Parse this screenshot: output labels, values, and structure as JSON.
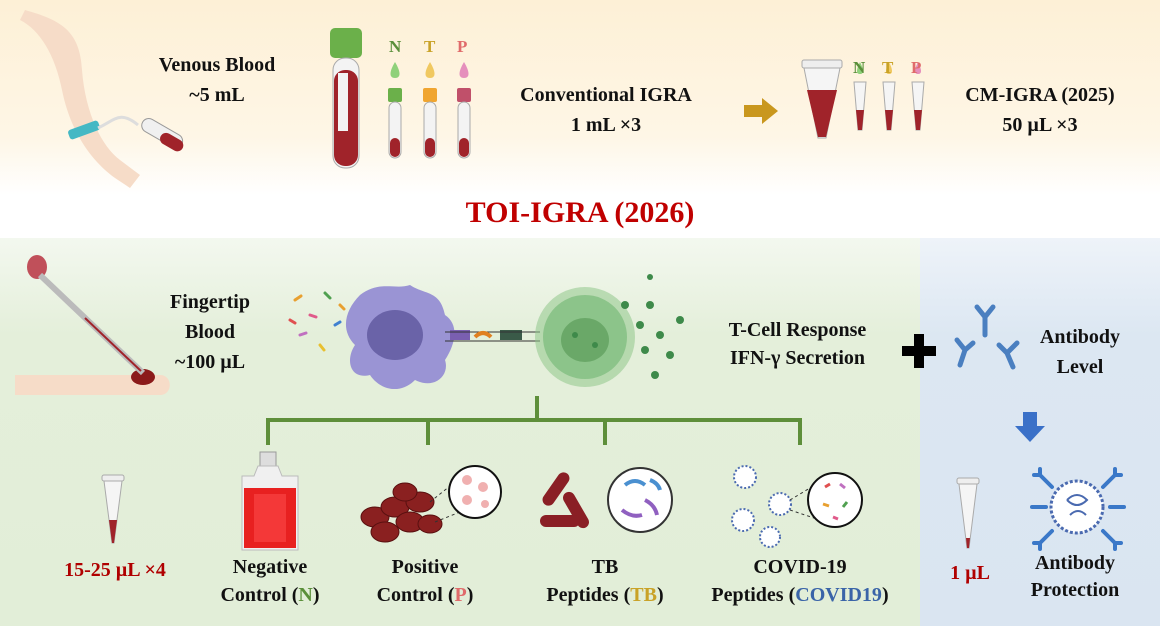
{
  "top": {
    "venous_blood": [
      "Venous Blood",
      "~5 mL"
    ],
    "conventional": [
      "Conventional IGRA",
      "1 mL ×3"
    ],
    "cm_igra": [
      "CM-IGRA (2025)",
      "50 µL ×3"
    ],
    "tube_letters": [
      "N",
      "T",
      "P"
    ]
  },
  "title": "TOI-IGRA (2026)",
  "middle": {
    "fingertip": [
      "Fingertip",
      "Blood",
      "~100 µL"
    ],
    "tcell": [
      "T-Cell Response",
      "IFN-γ Secretion"
    ],
    "antibody_level": [
      "Antibody",
      "Level"
    ]
  },
  "bottom": {
    "volume": "15-25 µL ×4",
    "negative": {
      "line1": "Negative",
      "pre": "Control (",
      "code": "N",
      "post": ")"
    },
    "positive": {
      "line1": "Positive",
      "pre": "Control (",
      "code": "P",
      "post": ")"
    },
    "tb": {
      "line1": "TB",
      "pre": "Peptides (",
      "code": "TB",
      "post": ")"
    },
    "covid": {
      "line1": "COVID-19",
      "pre": "Peptides (",
      "code": "COVID19",
      "post": ")"
    },
    "antibody_volume": "1 µL",
    "antibody_protection": [
      "Antibody",
      "Protection"
    ]
  },
  "colors": {
    "title_red": "#c00000",
    "n_green": "#5a8f3a",
    "t_gold": "#c9a227",
    "p_pink": "#e06b6b",
    "covid_blue": "#3a64a8",
    "tree_green": "#5e8f3a",
    "blood": "#a0232a"
  }
}
